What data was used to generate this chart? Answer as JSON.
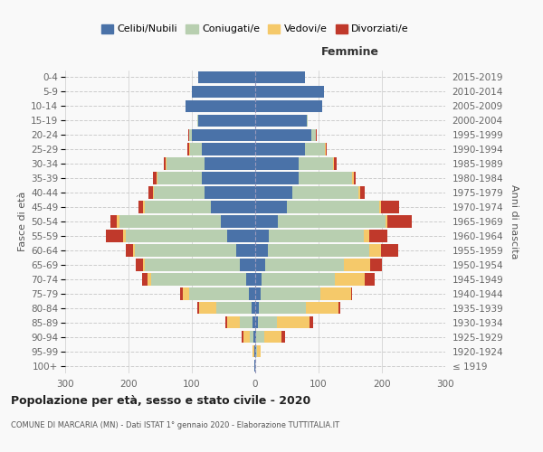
{
  "age_groups": [
    "100+",
    "95-99",
    "90-94",
    "85-89",
    "80-84",
    "75-79",
    "70-74",
    "65-69",
    "60-64",
    "55-59",
    "50-54",
    "45-49",
    "40-44",
    "35-39",
    "30-34",
    "25-29",
    "20-24",
    "15-19",
    "10-14",
    "5-9",
    "0-4"
  ],
  "birth_years": [
    "≤ 1919",
    "1920-1924",
    "1925-1929",
    "1930-1934",
    "1935-1939",
    "1940-1944",
    "1945-1949",
    "1950-1954",
    "1955-1959",
    "1960-1964",
    "1965-1969",
    "1970-1974",
    "1975-1979",
    "1980-1984",
    "1985-1989",
    "1990-1994",
    "1995-1999",
    "2000-2004",
    "2005-2009",
    "2010-2014",
    "2015-2019"
  ],
  "male": {
    "celibi": [
      1,
      1,
      3,
      5,
      6,
      10,
      15,
      25,
      30,
      45,
      55,
      70,
      80,
      85,
      80,
      85,
      100,
      90,
      110,
      100,
      90
    ],
    "coniugati": [
      0,
      1,
      5,
      20,
      55,
      95,
      150,
      150,
      160,
      160,
      160,
      105,
      80,
      70,
      60,
      18,
      4,
      1,
      0,
      0,
      0
    ],
    "vedovi": [
      0,
      2,
      10,
      20,
      28,
      10,
      5,
      2,
      3,
      3,
      3,
      2,
      1,
      1,
      1,
      1,
      1,
      0,
      0,
      0,
      0
    ],
    "divorziati": [
      0,
      0,
      3,
      2,
      2,
      3,
      8,
      12,
      12,
      28,
      10,
      8,
      8,
      5,
      3,
      3,
      1,
      0,
      0,
      0,
      0
    ]
  },
  "female": {
    "nubili": [
      0,
      1,
      2,
      4,
      5,
      8,
      10,
      15,
      20,
      22,
      35,
      50,
      58,
      68,
      68,
      78,
      88,
      82,
      105,
      108,
      78
    ],
    "coniugate": [
      0,
      2,
      12,
      30,
      75,
      95,
      115,
      125,
      160,
      150,
      170,
      145,
      105,
      85,
      55,
      32,
      7,
      1,
      0,
      0,
      0
    ],
    "vedove": [
      0,
      5,
      28,
      52,
      52,
      48,
      48,
      42,
      18,
      8,
      4,
      4,
      2,
      2,
      1,
      1,
      1,
      0,
      0,
      0,
      0
    ],
    "divorziate": [
      0,
      0,
      5,
      5,
      2,
      2,
      15,
      18,
      28,
      28,
      38,
      28,
      8,
      4,
      4,
      2,
      1,
      0,
      0,
      0,
      0
    ]
  },
  "colors": {
    "celibi": "#4a72a8",
    "coniugati": "#b8cfb0",
    "vedovi": "#f5c96a",
    "divorziati": "#c0392b"
  },
  "xlim": 300,
  "title": "Popolazione per età, sesso e stato civile - 2020",
  "subtitle": "COMUNE DI MARCARIA (MN) - Dati ISTAT 1° gennaio 2020 - Elaborazione TUTTITALIA.IT",
  "bg_color": "#f9f9f9",
  "grid_color": "#cccccc"
}
